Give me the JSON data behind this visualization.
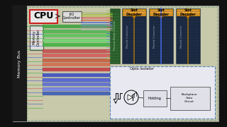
{
  "bg_color": "#111111",
  "diagram_bg": "#c8c8aa",
  "cpu_label": "CPU",
  "io_label": "I/O\nController",
  "mem_ctrl_label": "Memory\nController",
  "mem_bus_label": "Memory Bus",
  "slot_labels": [
    "Slot\nDecoder",
    "Slot\nDecoder",
    "Slot\nDecoder"
  ],
  "opto_label": "Opto Isolator",
  "holding_label": "Holding",
  "backplane_label": "Backplane\nGate\nCircuit",
  "proc_mod_label": "Processor Module Connector",
  "mod_conn_label": "Module Connector",
  "bus_colors": [
    "#cc4444",
    "#cc6644",
    "#ccaa44",
    "#88cc44",
    "#44cc88",
    "#4488cc",
    "#8844cc",
    "#cc44aa",
    "#aa3333",
    "#aa5533",
    "#aa8833",
    "#66aa33",
    "#33aa66",
    "#3366aa",
    "#6633aa",
    "#aa3388"
  ]
}
